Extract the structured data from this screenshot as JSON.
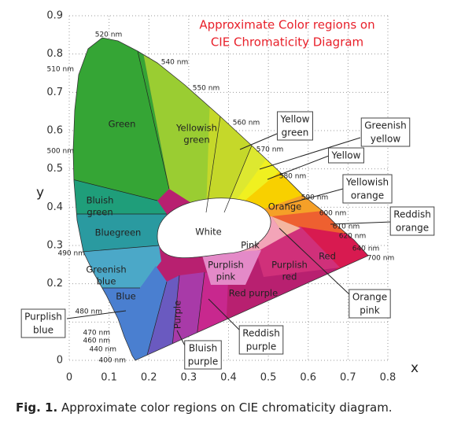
{
  "chart_data": {
    "type": "chromaticity",
    "title": [
      "Approximate Color regions on",
      "CIE Chromaticity Diagram"
    ],
    "xlabel": "x",
    "ylabel": "y",
    "xlim": [
      0,
      0.8
    ],
    "ylim": [
      0,
      0.9
    ],
    "xticks": [
      0,
      0.1,
      0.2,
      0.3,
      0.4,
      0.5,
      0.6,
      0.7,
      0.8
    ],
    "yticks": [
      0,
      0.1,
      0.2,
      0.3,
      0.4,
      0.5,
      0.6,
      0.7,
      0.8,
      0.9
    ],
    "grid": true,
    "wavelength_labels": [
      "520 nm",
      "540 nm",
      "550 nm",
      "560 nm",
      "570 nm",
      "580 nm",
      "590 nm",
      "600 nm",
      "610 nm",
      "620 nm",
      "640 nm",
      "700 nm",
      "510 nm",
      "500 nm",
      "490 nm",
      "480 nm",
      "470 nm",
      "460 nm",
      "440 nm",
      "400 nm"
    ],
    "region_labels": [
      [
        "Green"
      ],
      [
        "Yellowish",
        "green"
      ],
      [
        "Bluish",
        "green"
      ],
      [
        "Bluegreen"
      ],
      [
        "White"
      ],
      [
        "Pink"
      ],
      [
        "Greenish",
        "blue"
      ],
      [
        "Purplish",
        "pink"
      ],
      [
        "Purplish",
        "red"
      ],
      [
        "Red"
      ],
      [
        "Red purple"
      ],
      [
        "Blue"
      ],
      [
        "Purple"
      ],
      [
        "Orange"
      ]
    ],
    "callout_labels": [
      [
        "Yellow",
        "green"
      ],
      [
        "Greenish",
        "yellow"
      ],
      [
        "Yellow"
      ],
      [
        "Yellowish",
        "orange"
      ],
      [
        "Reddish",
        "orange"
      ],
      [
        "Orange",
        "pink"
      ],
      [
        "Reddish",
        "purple"
      ],
      [
        "Bluish",
        "purple"
      ],
      [
        "Purplish",
        "blue"
      ]
    ]
  },
  "caption": {
    "label": "Fig. 1.",
    "text": "Approximate color regions on CIE chromaticity diagram."
  }
}
